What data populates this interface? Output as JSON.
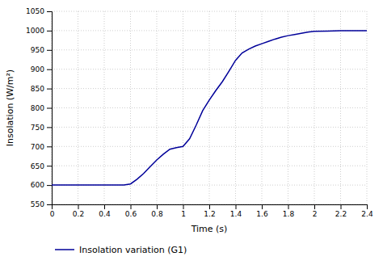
{
  "chart_data": {
    "type": "line",
    "x": [
      0.0,
      0.5,
      0.55,
      0.6,
      0.65,
      0.7,
      0.75,
      0.8,
      0.85,
      0.9,
      0.95,
      1.0,
      1.05,
      1.1,
      1.15,
      1.2,
      1.25,
      1.3,
      1.35,
      1.4,
      1.45,
      1.5,
      1.55,
      1.6,
      1.65,
      1.7,
      1.75,
      1.8,
      1.85,
      1.9,
      1.95,
      2.0,
      2.1,
      2.2,
      2.3,
      2.4
    ],
    "series": [
      {
        "name": "Insolation variation (G1)",
        "color": "#000099",
        "values": [
          600,
          600,
          600,
          603,
          615,
          630,
          648,
          665,
          680,
          693,
          697,
          700,
          720,
          755,
          793,
          820,
          845,
          868,
          895,
          923,
          942,
          952,
          960,
          966,
          972,
          978,
          983,
          987,
          990,
          993,
          996,
          998,
          999,
          1000,
          1000,
          1000
        ]
      }
    ],
    "xlabel": "Time (s)",
    "ylabel": "Insolation (W/m²)",
    "xlim": [
      0,
      2.4
    ],
    "ylim": [
      550,
      1050
    ],
    "xticks": [
      0,
      0.2,
      0.4,
      0.6,
      0.8,
      1,
      1.2,
      1.4,
      1.6,
      1.8,
      2,
      2.2,
      2.4
    ],
    "yticks": [
      550,
      600,
      650,
      700,
      750,
      800,
      850,
      900,
      950,
      1000,
      1050
    ],
    "grid": true,
    "legend": "bottom"
  }
}
